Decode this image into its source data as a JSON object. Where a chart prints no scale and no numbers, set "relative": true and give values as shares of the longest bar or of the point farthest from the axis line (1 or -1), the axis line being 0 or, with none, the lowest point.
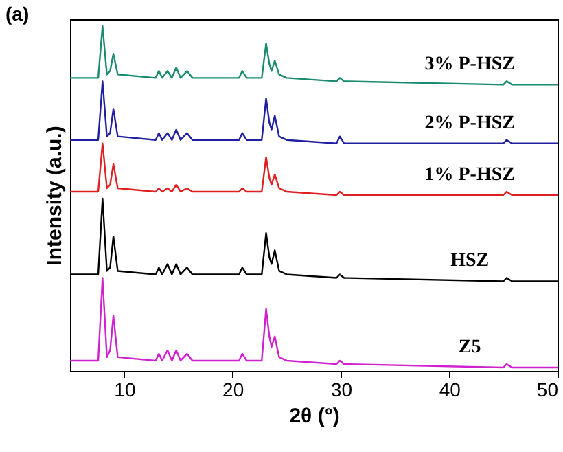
{
  "chart_data": {
    "type": "line",
    "title": "(a)",
    "xlabel": "2θ (°)",
    "ylabel": "Intensity (a.u.)",
    "relative": true,
    "x": [
      5,
      7.6,
      8.0,
      8.4,
      8.7,
      9.0,
      9.4,
      12.9,
      13.2,
      13.5,
      14.0,
      14.4,
      14.8,
      15.2,
      15.8,
      16.3,
      20.6,
      20.9,
      21.3,
      22.7,
      23.1,
      23.4,
      23.6,
      23.9,
      24.3,
      25.0,
      29.6,
      29.9,
      30.3,
      45.0,
      45.3,
      45.8,
      50
    ],
    "series": [
      {
        "name": "3% P-HSZ",
        "color": "#1a8a70",
        "values": [
          0.85,
          0.85,
          1.0,
          0.86,
          0.87,
          0.92,
          0.86,
          0.85,
          0.87,
          0.85,
          0.87,
          0.85,
          0.88,
          0.85,
          0.87,
          0.85,
          0.85,
          0.87,
          0.85,
          0.85,
          0.95,
          0.89,
          0.87,
          0.9,
          0.86,
          0.85,
          0.84,
          0.85,
          0.84,
          0.83,
          0.84,
          0.83,
          0.83
        ]
      },
      {
        "name": "2% P-HSZ",
        "color": "#2020a0",
        "values": [
          0.67,
          0.67,
          0.84,
          0.68,
          0.69,
          0.76,
          0.68,
          0.67,
          0.69,
          0.67,
          0.69,
          0.67,
          0.7,
          0.67,
          0.69,
          0.67,
          0.67,
          0.69,
          0.67,
          0.67,
          0.79,
          0.72,
          0.7,
          0.74,
          0.68,
          0.67,
          0.66,
          0.68,
          0.66,
          0.66,
          0.67,
          0.66,
          0.66
        ]
      },
      {
        "name": "1% P-HSZ",
        "color": "#e02020",
        "values": [
          0.52,
          0.52,
          0.66,
          0.53,
          0.54,
          0.6,
          0.53,
          0.52,
          0.53,
          0.52,
          0.53,
          0.52,
          0.54,
          0.52,
          0.53,
          0.52,
          0.52,
          0.53,
          0.52,
          0.52,
          0.62,
          0.56,
          0.54,
          0.57,
          0.53,
          0.52,
          0.51,
          0.52,
          0.51,
          0.51,
          0.52,
          0.51,
          0.51
        ]
      },
      {
        "name": "HSZ",
        "color": "#000000",
        "values": [
          0.28,
          0.28,
          0.5,
          0.29,
          0.3,
          0.39,
          0.29,
          0.28,
          0.3,
          0.28,
          0.31,
          0.28,
          0.31,
          0.28,
          0.3,
          0.28,
          0.28,
          0.3,
          0.28,
          0.28,
          0.4,
          0.33,
          0.31,
          0.35,
          0.29,
          0.28,
          0.27,
          0.28,
          0.27,
          0.26,
          0.27,
          0.26,
          0.26
        ]
      },
      {
        "name": "Z5",
        "color": "#d020d0",
        "values": [
          0.03,
          0.03,
          0.27,
          0.04,
          0.06,
          0.16,
          0.04,
          0.03,
          0.05,
          0.03,
          0.06,
          0.03,
          0.06,
          0.03,
          0.05,
          0.03,
          0.03,
          0.05,
          0.03,
          0.03,
          0.18,
          0.1,
          0.07,
          0.1,
          0.04,
          0.03,
          0.02,
          0.03,
          0.02,
          0.01,
          0.02,
          0.01,
          0.01
        ]
      }
    ],
    "xlim": [
      5,
      50
    ],
    "xticks": [
      10,
      20,
      30,
      40,
      50
    ],
    "legend": false,
    "grid": false,
    "marker": "none",
    "line_style": "solid"
  }
}
